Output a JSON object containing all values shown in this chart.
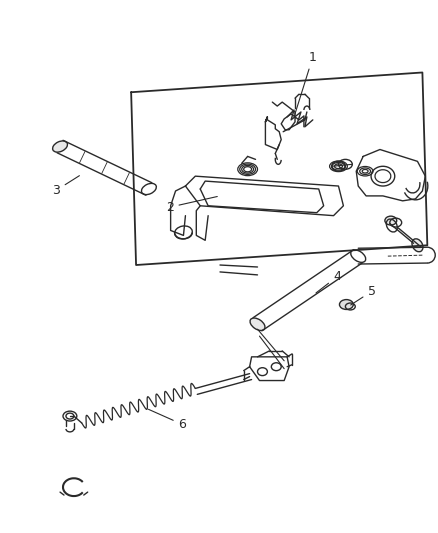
{
  "bg_color": "#ffffff",
  "line_color": "#2a2a2a",
  "label_color": "#222222",
  "fig_width": 4.39,
  "fig_height": 5.33,
  "dpi": 100
}
